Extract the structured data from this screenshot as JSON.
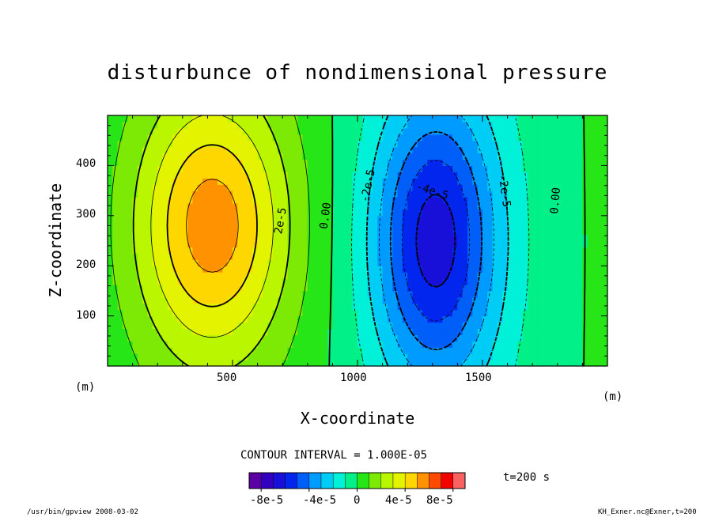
{
  "chart_data": {
    "type": "contour",
    "title": "disturbunce of nondimensional pressure",
    "xlabel": "X-coordinate",
    "ylabel": "Z-coordinate",
    "x_unit": "(m)",
    "y_unit": "(m)",
    "xlim": [
      0,
      2000
    ],
    "ylim": [
      0,
      500
    ],
    "xticks": [
      500,
      1000,
      1500
    ],
    "yticks": [
      100,
      200,
      300,
      400
    ],
    "contour_interval_text": "CONTOUR INTERVAL = 1.000E-05",
    "time_text": "t=200 s",
    "contour_labels": [
      "2e-5",
      "0.00",
      "-2e-5",
      "-4e-5",
      "-2e-5",
      "0.00"
    ],
    "field": {
      "high_center": {
        "x": 420,
        "z": 280,
        "value": 5e-05
      },
      "low_center": {
        "x": 1310,
        "z": 250,
        "value": -6e-05
      }
    },
    "colorbar": {
      "min": -9e-05,
      "max": 9e-05,
      "step": 1e-05,
      "tick_labels": [
        "-8e-5",
        "-4e-5",
        "0",
        "4e-5",
        "8e-5"
      ],
      "tick_values": [
        -8e-05,
        -4e-05,
        0,
        4e-05,
        8e-05
      ]
    }
  },
  "footer": {
    "left": "/usr/bin/gpview   2008-03-02",
    "right": "KH_Exner.nc@Exner,t=200"
  }
}
